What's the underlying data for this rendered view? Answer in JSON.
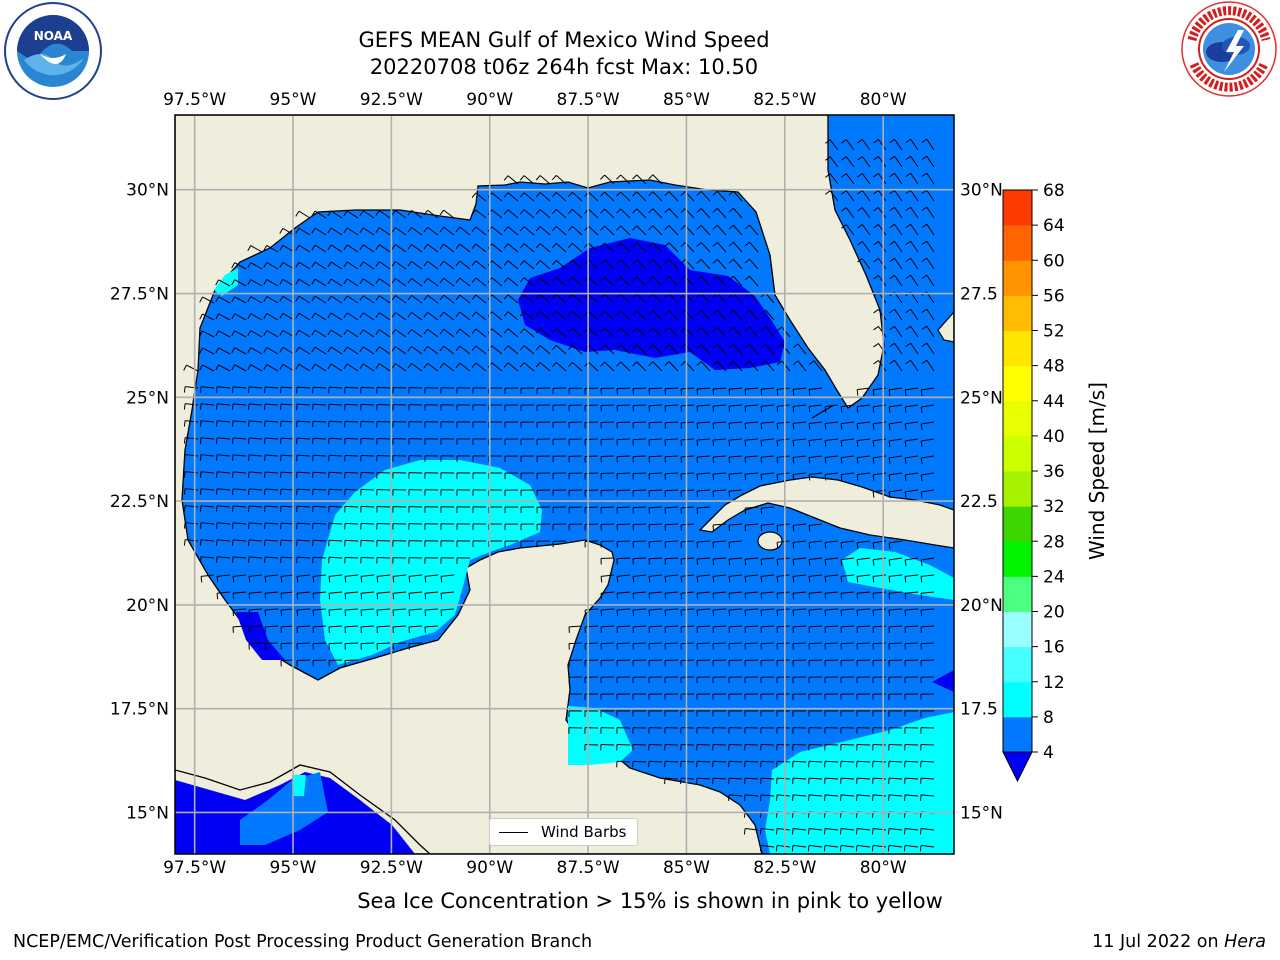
{
  "title": {
    "line1": "GEFS MEAN Gulf of Mexico Wind Speed",
    "line2": "20220708 t06z 264h fcst   Max: 10.50"
  },
  "map": {
    "lon_range": [
      -98.0,
      -78.2
    ],
    "lat_range": [
      14.0,
      31.8
    ],
    "lon_ticks": [
      "97.5°W",
      "95°W",
      "92.5°W",
      "90°W",
      "87.5°W",
      "85°W",
      "82.5°W",
      "80°W"
    ],
    "lon_tick_values": [
      -97.5,
      -95,
      -92.5,
      -90,
      -87.5,
      -85,
      -82.5,
      -80
    ],
    "lat_ticks_left": [
      "30°N",
      "27.5°N",
      "25°N",
      "22.5°N",
      "20°N",
      "17.5°N",
      "15°N"
    ],
    "lat_ticks_right": [
      "30°N",
      "27.5",
      "25°N",
      "22.5",
      "20°N",
      "17.5",
      "15°N"
    ],
    "lat_tick_values": [
      30,
      27.5,
      25,
      22.5,
      20,
      17.5,
      15
    ],
    "land_color": "#efeddc",
    "grid_color": "#b0b0b0"
  },
  "legend": {
    "label": "Wind Barbs"
  },
  "colorbar": {
    "label": "Wind Speed [m/s]",
    "ticks": [
      "4",
      "8",
      "12",
      "16",
      "20",
      "24",
      "28",
      "32",
      "36",
      "40",
      "44",
      "48",
      "52",
      "56",
      "60",
      "64",
      "68"
    ],
    "colors": [
      "#0079ff",
      "#00ffff",
      "#46ffff",
      "#99ffff",
      "#4dff7f",
      "#00f400",
      "#3dd600",
      "#a6f200",
      "#ccff00",
      "#e8ff00",
      "#ffff00",
      "#ffe500",
      "#ffbc00",
      "#ff9400",
      "#ff6400",
      "#ff3a00",
      "#ff0000"
    ],
    "extend_color": "#0000f4"
  },
  "note": "Sea Ice Concentration > 15% is shown in pink to yellow",
  "footer": {
    "left": "NCEP/EMC/Verification Post Processing Product Generation Branch",
    "date": "11 Jul 2022 on ",
    "machine": "Hera"
  }
}
